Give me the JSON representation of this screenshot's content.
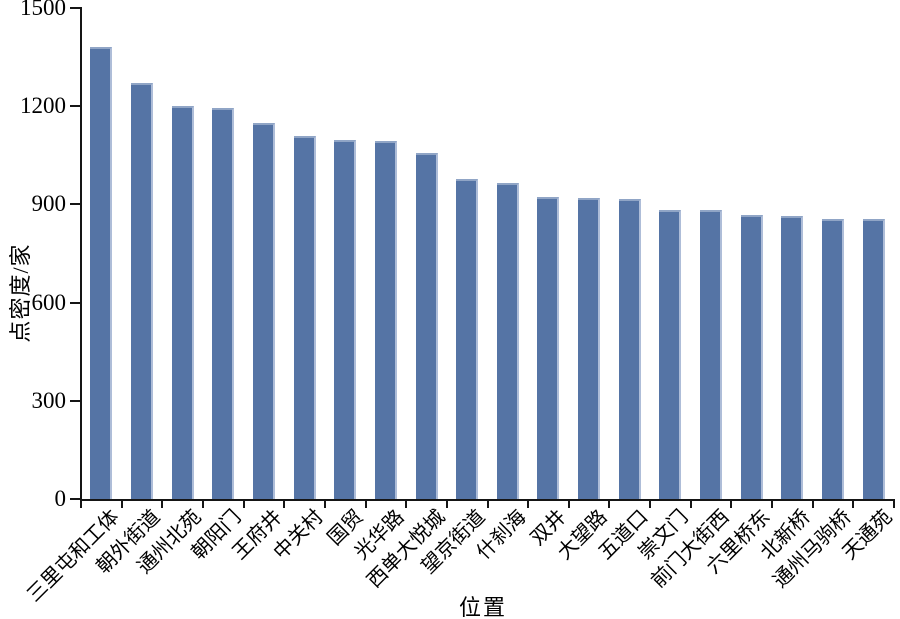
{
  "chart_data": {
    "type": "bar",
    "title": "",
    "xlabel": "位置",
    "ylabel": "点密度/家",
    "ylim": [
      0,
      1500
    ],
    "yticks": [
      0,
      300,
      600,
      900,
      1200,
      1500
    ],
    "grid": false,
    "legend": null,
    "categories": [
      "三里屯和工体",
      "朝外街道",
      "通州北苑",
      "朝阳门",
      "王府井",
      "中关村",
      "国贸",
      "光华路",
      "西单大悦城",
      "望京街道",
      "什刹海",
      "双井",
      "大望路",
      "五道口",
      "崇文门",
      "前门大街西",
      "六里桥东",
      "北新桥",
      "通州马驹桥",
      "天通苑"
    ],
    "values": [
      1380,
      1272,
      1200,
      1196,
      1150,
      1108,
      1096,
      1094,
      1056,
      977,
      966,
      923,
      921,
      918,
      884,
      883,
      869,
      864,
      856,
      855
    ],
    "bar_color": "#5574A5",
    "bar_highlight_right": "#AEBDD8",
    "bar_highlight_top": "#90A5C6",
    "axis_color": "#151515",
    "text_color": "#000000",
    "background": "#FFFFFF"
  }
}
